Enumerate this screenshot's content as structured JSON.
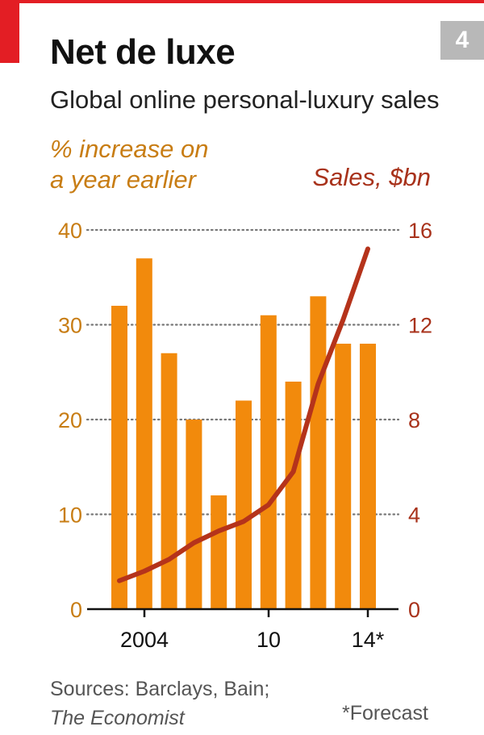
{
  "header": {
    "title": "Net de luxe",
    "subtitle": "Global online personal-luxury sales",
    "page_number": "4"
  },
  "colors": {
    "bar": "#f28a0c",
    "line": "#b5331b",
    "left_axis_text": "#c87d14",
    "right_axis_text": "#a8321b",
    "grid": "#777777",
    "axis": "#111111",
    "accent_red": "#e31e24"
  },
  "chart_data": {
    "type": "bar",
    "categories": [
      "2004",
      "2005",
      "2006",
      "2007",
      "2008",
      "2009",
      "2010",
      "2011",
      "2012",
      "2013",
      "2014*"
    ],
    "x_tick_labels": [
      {
        "label": "2004",
        "index": 0
      },
      {
        "label": "10",
        "index": 6
      },
      {
        "label": "14*",
        "index": 10
      }
    ],
    "series": [
      {
        "type": "bar",
        "axis": "left",
        "values": [
          32,
          37,
          27,
          20,
          12,
          22,
          31,
          24,
          33,
          28,
          28
        ]
      },
      {
        "type": "line",
        "axis": "right",
        "values": [
          1.2,
          1.6,
          2.1,
          2.8,
          3.3,
          3.7,
          4.4,
          5.8,
          9.5,
          12.2,
          15.2
        ]
      }
    ],
    "left_axis": {
      "label_line1": "% increase on",
      "label_line2": "a year earlier",
      "ylim": [
        0,
        40
      ],
      "ticks": [
        "0",
        "10",
        "20",
        "30",
        "40"
      ]
    },
    "right_axis": {
      "label": "Sales, $bn",
      "ylim": [
        0,
        16
      ],
      "ticks": [
        "0",
        "4",
        "8",
        "12",
        "16"
      ]
    },
    "grid": true
  },
  "footer": {
    "sources_line1": "Sources: Barclays, Bain;",
    "sources_line2": "The Economist",
    "footnote": "*Forecast"
  }
}
